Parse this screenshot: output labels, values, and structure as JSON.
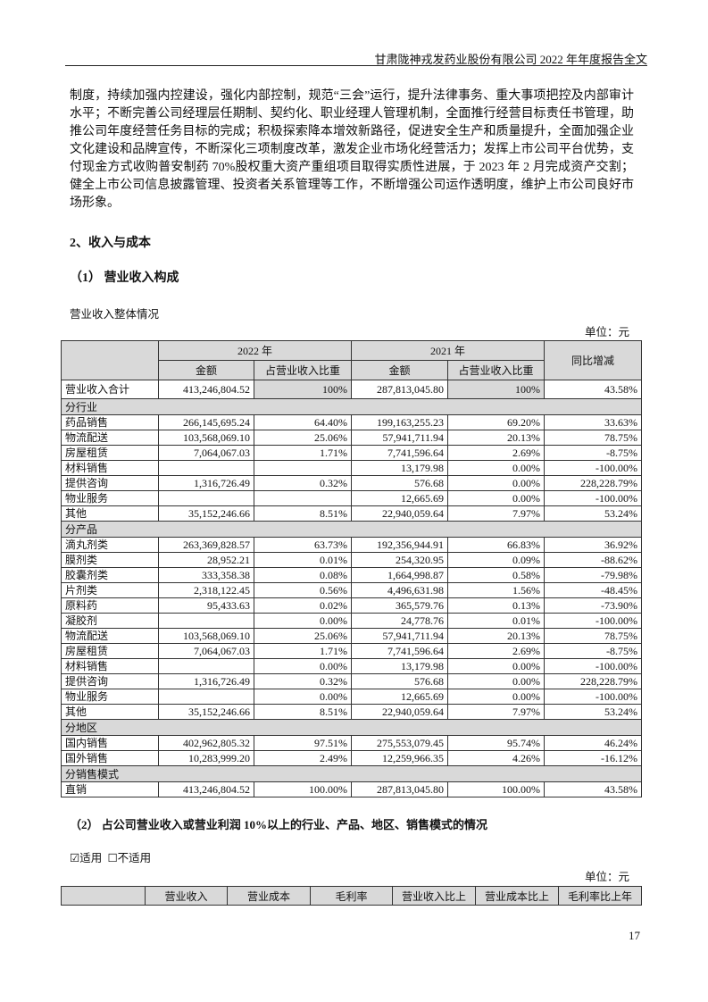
{
  "header": {
    "title": "甘肃陇神戎发药业股份有限公司 2022 年年度报告全文"
  },
  "paragraph": "制度，持续加强内控建设，强化内部控制，规范“三会”运行，提升法律事务、重大事项把控及内部审计水平；不断完善公司经理层任期制、契约化、职业经理人管理机制，全面推行经营目标责任书管理，助推公司年度经营任务目标的完成；积极探索降本增效新路径，促进安全生产和质量提升，全面加强企业文化建设和品牌宣传，不断深化三项制度改革，激发企业市场化经营活力；发挥上市公司平台优势，支付现金方式收购普安制药 70%股权重大资产重组项目取得实质性进展，于 2023 年 2 月完成资产交割；健全上市公司信息披露管理、投资者关系管理等工作，不断增强公司运作透明度，维护上市公司良好市场形象。",
  "section_title": "2、收入与成本",
  "sub1": {
    "title": "（1） 营业收入构成",
    "table_title": "营业收入整体情况",
    "unit": "单位：元"
  },
  "table1": {
    "year_2022": "2022 年",
    "year_2021": "2021 年",
    "amount": "金额",
    "share": "占营业收入比重",
    "yoy": "同比增减",
    "total": {
      "label": "营业收入合计",
      "amt2022": "413,246,804.52",
      "pct2022": "100%",
      "amt2021": "287,813,045.80",
      "pct2021": "100%",
      "yoy": "43.58%"
    },
    "sections": [
      {
        "title": "分行业",
        "rows": [
          [
            "药品销售",
            "266,145,695.24",
            "64.40%",
            "199,163,255.23",
            "69.20%",
            "33.63%"
          ],
          [
            "物流配送",
            "103,568,069.10",
            "25.06%",
            "57,941,711.94",
            "20.13%",
            "78.75%"
          ],
          [
            "房屋租赁",
            "7,064,067.03",
            "1.71%",
            "7,741,596.64",
            "2.69%",
            "-8.75%"
          ],
          [
            "材料销售",
            "",
            "",
            "13,179.98",
            "0.00%",
            "-100.00%"
          ],
          [
            "提供咨询",
            "1,316,726.49",
            "0.32%",
            "576.68",
            "0.00%",
            "228,228.79%"
          ],
          [
            "物业服务",
            "",
            "",
            "12,665.69",
            "0.00%",
            "-100.00%"
          ],
          [
            "其他",
            "35,152,246.66",
            "8.51%",
            "22,940,059.64",
            "7.97%",
            "53.24%"
          ]
        ]
      },
      {
        "title": "分产品",
        "rows": [
          [
            "滴丸剂类",
            "263,369,828.57",
            "63.73%",
            "192,356,944.91",
            "66.83%",
            "36.92%"
          ],
          [
            "膜剂类",
            "28,952.21",
            "0.01%",
            "254,320.95",
            "0.09%",
            "-88.62%"
          ],
          [
            "胶囊剂类",
            "333,358.38",
            "0.08%",
            "1,664,998.87",
            "0.58%",
            "-79.98%"
          ],
          [
            "片剂类",
            "2,318,122.45",
            "0.56%",
            "4,496,631.98",
            "1.56%",
            "-48.45%"
          ],
          [
            "原料药",
            "95,433.63",
            "0.02%",
            "365,579.76",
            "0.13%",
            "-73.90%"
          ],
          [
            "凝胶剂",
            "",
            "0.00%",
            "24,778.76",
            "0.01%",
            "-100.00%"
          ],
          [
            "物流配送",
            "103,568,069.10",
            "25.06%",
            "57,941,711.94",
            "20.13%",
            "78.75%"
          ],
          [
            "房屋租赁",
            "7,064,067.03",
            "1.71%",
            "7,741,596.64",
            "2.69%",
            "-8.75%"
          ],
          [
            "材料销售",
            "",
            "0.00%",
            "13,179.98",
            "0.00%",
            "-100.00%"
          ],
          [
            "提供咨询",
            "1,316,726.49",
            "0.32%",
            "576.68",
            "0.00%",
            "228,228.79%"
          ],
          [
            "物业服务",
            "",
            "0.00%",
            "12,665.69",
            "0.00%",
            "-100.00%"
          ],
          [
            "其他",
            "35,152,246.66",
            "8.51%",
            "22,940,059.64",
            "7.97%",
            "53.24%"
          ]
        ]
      },
      {
        "title": "分地区",
        "rows": [
          [
            "国内销售",
            "402,962,805.32",
            "97.51%",
            "275,553,079.45",
            "95.74%",
            "46.24%"
          ],
          [
            "国外销售",
            "10,283,999.20",
            "2.49%",
            "12,259,966.35",
            "4.26%",
            "-16.12%"
          ]
        ]
      },
      {
        "title": "分销售模式",
        "rows": [
          [
            "直销",
            "413,246,804.52",
            "100.00%",
            "287,813,045.80",
            "100.00%",
            "43.58%"
          ]
        ]
      }
    ]
  },
  "sub2": {
    "title": "（2） 占公司营业收入或营业利润 10%以上的行业、产品、地区、销售模式的情况",
    "applicable": "☑适用",
    "not_applicable": "☐不适用",
    "unit": "单位：元",
    "headers": [
      "",
      "营业收入",
      "营业成本",
      "毛利率",
      "营业收入比上",
      "营业成本比上",
      "毛利率比上年"
    ]
  },
  "page_number": "17"
}
